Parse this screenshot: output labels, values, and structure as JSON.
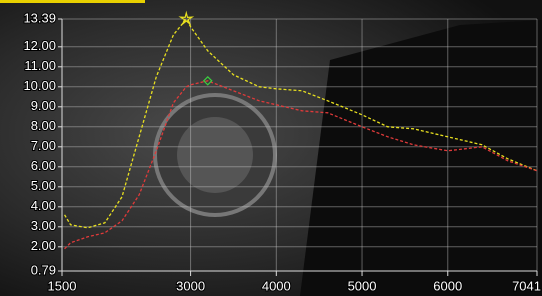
{
  "chart_data": {
    "type": "line",
    "x": [
      1530,
      1600,
      1800,
      2000,
      2200,
      2400,
      2600,
      2800,
      2950,
      3000,
      3200,
      3500,
      3800,
      4000,
      4300,
      4600,
      5000,
      5300,
      5600,
      6000,
      6400,
      6700,
      7041
    ],
    "series": [
      {
        "color": "#e8e020",
        "values": [
          3.6,
          3.1,
          2.95,
          3.2,
          4.5,
          7.5,
          10.5,
          12.6,
          13.39,
          13.0,
          11.8,
          10.6,
          10.0,
          9.9,
          9.8,
          9.3,
          8.6,
          8.0,
          7.9,
          7.5,
          7.1,
          6.4,
          5.8
        ]
      },
      {
        "color": "#e03a3a",
        "values": [
          1.9,
          2.2,
          2.5,
          2.7,
          3.3,
          4.6,
          6.8,
          9.2,
          10.0,
          10.1,
          10.3,
          9.8,
          9.3,
          9.1,
          8.8,
          8.7,
          8.0,
          7.5,
          7.1,
          6.8,
          7.0,
          6.3,
          5.8
        ]
      }
    ],
    "xlim": [
      1500,
      7041
    ],
    "xticks": [
      1500,
      3000,
      4000,
      5000,
      6000,
      7041
    ],
    "ylim": [
      0.79,
      13.39
    ],
    "yticks": [
      0.79,
      {
        "value": 2,
        "label": "2.00"
      },
      {
        "value": 3,
        "label": "3.00"
      },
      {
        "value": 4,
        "label": "4.00"
      },
      {
        "value": 5,
        "label": "5.00"
      },
      {
        "value": 6,
        "label": "6.00"
      },
      {
        "value": 7,
        "label": "7.00"
      },
      {
        "value": 8,
        "label": "8.00"
      },
      {
        "value": 9,
        "label": "9.00"
      },
      {
        "value": 10,
        "label": "10.00"
      },
      {
        "value": 11,
        "label": "11.00"
      },
      {
        "value": 12,
        "label": "12.00"
      },
      13.39
    ],
    "grid": true
  }
}
